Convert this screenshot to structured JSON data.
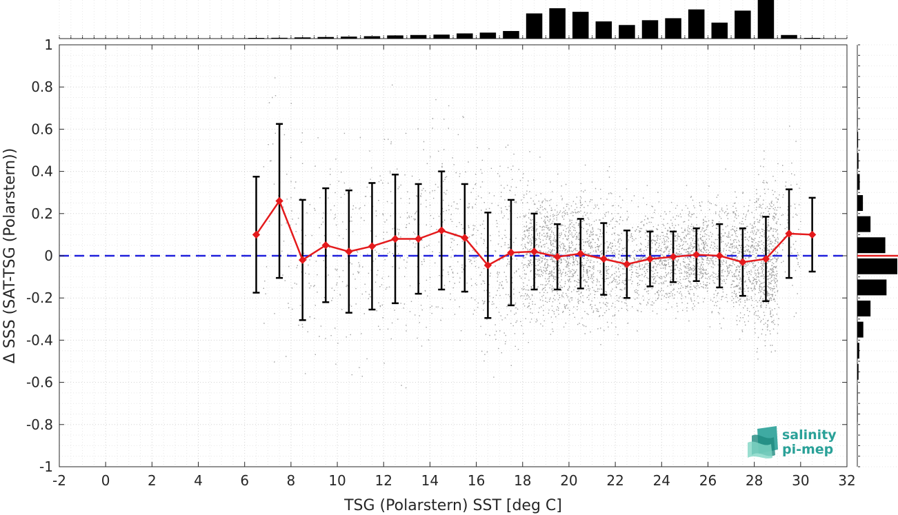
{
  "chart_data": {
    "type": "scatter",
    "title": "",
    "xlabel": "TSG (Polarstern) SST [deg C]",
    "ylabel": "Δ SSS (SAT-TSG (Polarstern))",
    "xlim": [
      -2,
      32
    ],
    "ylim": [
      -1,
      1
    ],
    "x_ticks": [
      "-2",
      "0",
      "2",
      "4",
      "6",
      "8",
      "10",
      "12",
      "14",
      "16",
      "18",
      "20",
      "22",
      "24",
      "26",
      "28",
      "30",
      "32"
    ],
    "y_ticks": [
      "-1",
      "-0.8",
      "-0.6",
      "-0.4",
      "-0.2",
      "0",
      "0.2",
      "0.4",
      "0.6",
      "0.8",
      "1"
    ],
    "grid": true,
    "reference_line": {
      "y": 0,
      "color": "#1f1fdc",
      "style": "dashed"
    },
    "series": [
      {
        "kind": "binned_mean_with_std",
        "color": "#e41a1c",
        "x": [
          6.5,
          7.5,
          8.5,
          9.5,
          10.5,
          11.5,
          12.5,
          13.5,
          14.5,
          15.5,
          16.5,
          17.5,
          18.5,
          19.5,
          20.5,
          21.5,
          22.5,
          23.5,
          24.5,
          25.5,
          26.5,
          27.5,
          28.5,
          29.5,
          30.5
        ],
        "mean": [
          0.1,
          0.26,
          -0.02,
          0.05,
          0.02,
          0.045,
          0.08,
          0.08,
          0.12,
          0.085,
          -0.045,
          0.015,
          0.02,
          -0.005,
          0.01,
          -0.015,
          -0.04,
          -0.015,
          -0.005,
          0.005,
          0.0,
          -0.03,
          -0.015,
          0.105,
          0.1
        ],
        "std": [
          0.275,
          0.365,
          0.285,
          0.27,
          0.29,
          0.3,
          0.305,
          0.26,
          0.28,
          0.255,
          0.25,
          0.25,
          0.18,
          0.155,
          0.165,
          0.17,
          0.16,
          0.13,
          0.12,
          0.125,
          0.15,
          0.16,
          0.2,
          0.21,
          0.175
        ]
      }
    ],
    "top_histogram": {
      "bins": [
        6.5,
        7.5,
        8.5,
        9.5,
        10.5,
        11.5,
        12.5,
        13.5,
        14.5,
        15.5,
        16.5,
        17.5,
        18.5,
        19.5,
        20.5,
        21.5,
        22.5,
        23.5,
        24.5,
        25.5,
        26.5,
        27.5,
        28.5,
        29.5,
        30.5
      ],
      "relative_counts": [
        0.01,
        0.02,
        0.03,
        0.04,
        0.05,
        0.06,
        0.08,
        0.09,
        0.1,
        0.13,
        0.15,
        0.19,
        0.63,
        0.76,
        0.67,
        0.43,
        0.34,
        0.46,
        0.51,
        0.73,
        0.4,
        0.7,
        1.0,
        0.09,
        0.01
      ]
    },
    "right_histogram": {
      "bins": [
        -0.95,
        -0.85,
        -0.75,
        -0.65,
        -0.55,
        -0.45,
        -0.35,
        -0.25,
        -0.15,
        -0.05,
        0.05,
        0.15,
        0.25,
        0.35,
        0.45,
        0.55,
        0.65,
        0.75,
        0.85,
        0.95
      ],
      "relative_counts": [
        0.0,
        0.0,
        0.01,
        0.01,
        0.03,
        0.05,
        0.15,
        0.33,
        0.73,
        1.0,
        0.7,
        0.33,
        0.14,
        0.06,
        0.03,
        0.02,
        0.01,
        0.01,
        0.0,
        0.0
      ],
      "mean_line_color": "#e41a1c"
    },
    "scatter_color": "#8c8c8c"
  },
  "logo": {
    "line1": "salinity",
    "line2": "pi-mep"
  }
}
